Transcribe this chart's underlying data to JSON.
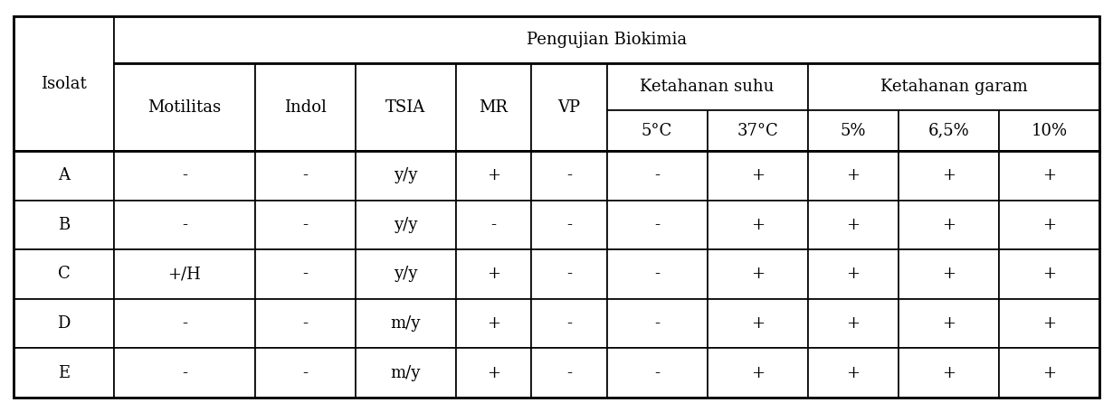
{
  "title": "Pengujian Biokimia",
  "simple_cols": [
    "Motilitas",
    "Indol",
    "TSIA",
    "MR",
    "VP"
  ],
  "group1_label": "Ketahanan suhu",
  "group1_cols": [
    "5°C",
    "37°C"
  ],
  "group2_label": "Ketahanan garam",
  "group2_cols": [
    "5%",
    "6,5%",
    "10%"
  ],
  "rows": [
    [
      "A",
      "-",
      "-",
      "y/y",
      "+",
      "-",
      "-",
      "+",
      "+",
      "+",
      "+"
    ],
    [
      "B",
      "-",
      "-",
      "y/y",
      "-",
      "-",
      "-",
      "+",
      "+",
      "+",
      "+"
    ],
    [
      "C",
      "+/H",
      "-",
      "y/y",
      "+",
      "-",
      "-",
      "+",
      "+",
      "+",
      "+"
    ],
    [
      "D",
      "-",
      "-",
      "m/y",
      "+",
      "-",
      "-",
      "+",
      "+",
      "+",
      "+"
    ],
    [
      "E",
      "-",
      "-",
      "m/y",
      "+",
      "-",
      "-",
      "+",
      "+",
      "+",
      "+"
    ]
  ],
  "col_widths_rel": [
    1.0,
    1.4,
    1.0,
    1.0,
    0.75,
    0.75,
    1.0,
    1.0,
    0.9,
    1.0,
    1.0
  ],
  "bg_color": "#ffffff",
  "text_color": "#000000",
  "font_size": 13,
  "header_font_size": 13
}
